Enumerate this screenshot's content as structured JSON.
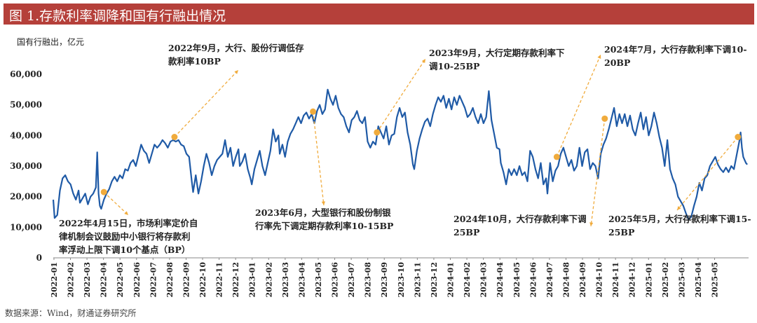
{
  "header": {
    "title": "图 1.存款利率调降和国有行融出情况"
  },
  "source": "数据来源：Wind，财通证券研究所",
  "colors": {
    "header_bg": "#b5403a",
    "line": "#1f5aa6",
    "marker": "#f0ab3c",
    "annotation": "#f0ab3c"
  },
  "chart_data": {
    "type": "line",
    "unit_label": "国有行融出，亿元",
    "ylim": [
      0,
      60000
    ],
    "yticks": [
      "0",
      "10,000",
      "20,000",
      "30,000",
      "40,000",
      "50,000",
      "60,000"
    ],
    "ytick_values": [
      0,
      10000,
      20000,
      30000,
      40000,
      50000,
      60000
    ],
    "grid": false,
    "categories": [
      "2022-01",
      "2022-02",
      "2022-03",
      "2022-04",
      "2022-05",
      "2022-06",
      "2022-07",
      "2022-08",
      "2022-09",
      "2022-10",
      "2022-11",
      "2022-12",
      "2023-01",
      "2023-02",
      "2023-03",
      "2023-04",
      "2023-05",
      "2023-06",
      "2023-07",
      "2023-08",
      "2023-09",
      "2023-10",
      "2023-11",
      "2023-12",
      "2024-01",
      "2024-02",
      "2024-03",
      "2024-04",
      "2024-05",
      "2024-06",
      "2024-07",
      "2024-08",
      "2024-09",
      "2024-10",
      "2024-11",
      "2024-12",
      "2025-01",
      "2025-02",
      "2025-03",
      "2025-04",
      "2025-05"
    ],
    "series": [
      {
        "values": [
          [
            0.0,
            19000
          ],
          [
            0.1,
            13000
          ],
          [
            0.3,
            14000
          ],
          [
            0.5,
            22000
          ],
          [
            0.7,
            26000
          ],
          [
            0.9,
            27000
          ],
          [
            1.1,
            25000
          ],
          [
            1.3,
            24000
          ],
          [
            1.5,
            21000
          ],
          [
            1.7,
            19000
          ],
          [
            1.9,
            22000
          ],
          [
            2.0,
            18000
          ],
          [
            2.2,
            19500
          ],
          [
            2.4,
            21000
          ],
          [
            2.6,
            17500
          ],
          [
            2.8,
            20000
          ],
          [
            3.0,
            21000
          ],
          [
            3.2,
            23000
          ],
          [
            3.3,
            34500
          ],
          [
            3.4,
            21000
          ],
          [
            3.5,
            17000
          ],
          [
            3.6,
            16000
          ],
          [
            3.8,
            19000
          ],
          [
            4.0,
            21000
          ],
          [
            4.2,
            22500
          ],
          [
            4.4,
            25000
          ],
          [
            4.6,
            26500
          ],
          [
            4.8,
            25000
          ],
          [
            5.0,
            27000
          ],
          [
            5.2,
            26000
          ],
          [
            5.4,
            29000
          ],
          [
            5.6,
            28500
          ],
          [
            5.8,
            31000
          ],
          [
            6.0,
            32000
          ],
          [
            6.2,
            30000
          ],
          [
            6.4,
            33500
          ],
          [
            6.6,
            37000
          ],
          [
            6.8,
            35000
          ],
          [
            7.0,
            34000
          ],
          [
            7.2,
            31000
          ],
          [
            7.4,
            34000
          ],
          [
            7.6,
            37000
          ],
          [
            7.8,
            36000
          ],
          [
            8.0,
            37000
          ],
          [
            8.2,
            38500
          ],
          [
            8.4,
            37500
          ],
          [
            8.6,
            36000
          ],
          [
            8.8,
            38000
          ],
          [
            9.0,
            38500
          ],
          [
            9.2,
            38000
          ],
          [
            9.4,
            38500
          ],
          [
            9.6,
            37000
          ],
          [
            9.8,
            36500
          ],
          [
            10.0,
            34000
          ],
          [
            10.2,
            33000
          ],
          [
            10.4,
            25000
          ],
          [
            10.5,
            21500
          ],
          [
            10.7,
            27000
          ],
          [
            10.9,
            21000
          ],
          [
            11.1,
            25000
          ],
          [
            11.3,
            30000
          ],
          [
            11.5,
            34000
          ],
          [
            11.7,
            31000
          ],
          [
            11.9,
            27000
          ],
          [
            12.1,
            30000
          ],
          [
            12.3,
            32000
          ],
          [
            12.5,
            33000
          ],
          [
            12.7,
            34000
          ],
          [
            12.9,
            38500
          ],
          [
            13.1,
            33000
          ],
          [
            13.3,
            36000
          ],
          [
            13.5,
            30000
          ],
          [
            13.7,
            33000
          ],
          [
            13.9,
            35500
          ],
          [
            14.0,
            30000
          ],
          [
            14.2,
            31500
          ],
          [
            14.4,
            34000
          ],
          [
            14.6,
            29000
          ],
          [
            14.8,
            26000
          ],
          [
            14.9,
            24000
          ],
          [
            15.1,
            29000
          ],
          [
            15.3,
            32000
          ],
          [
            15.5,
            35000
          ],
          [
            15.7,
            30000
          ],
          [
            15.9,
            27000
          ],
          [
            16.1,
            31000
          ],
          [
            16.3,
            35000
          ],
          [
            16.5,
            42000
          ],
          [
            16.7,
            38000
          ],
          [
            16.9,
            40000
          ],
          [
            17.0,
            34000
          ],
          [
            17.2,
            37000
          ],
          [
            17.4,
            33000
          ],
          [
            17.6,
            38000
          ],
          [
            17.8,
            40500
          ],
          [
            18.0,
            42000
          ],
          [
            18.2,
            44000
          ],
          [
            18.4,
            46000
          ],
          [
            18.6,
            44000
          ],
          [
            18.8,
            46500
          ],
          [
            19.0,
            47500
          ],
          [
            19.2,
            45500
          ],
          [
            19.4,
            47000
          ],
          [
            19.6,
            44000
          ],
          [
            19.8,
            48000
          ],
          [
            20.0,
            50000
          ],
          [
            20.2,
            47000
          ],
          [
            20.4,
            48500
          ],
          [
            20.6,
            55000
          ],
          [
            20.8,
            52000
          ],
          [
            21.0,
            50000
          ],
          [
            21.2,
            53000
          ],
          [
            21.4,
            49000
          ],
          [
            21.6,
            47000
          ],
          [
            21.8,
            46000
          ],
          [
            22.0,
            43000
          ],
          [
            22.2,
            41000
          ],
          [
            22.4,
            45000
          ],
          [
            22.6,
            46000
          ],
          [
            22.8,
            48000
          ],
          [
            23.0,
            45000
          ],
          [
            23.2,
            44000
          ],
          [
            23.4,
            46000
          ],
          [
            23.6,
            38000
          ],
          [
            23.8,
            36000
          ],
          [
            24.0,
            38000
          ],
          [
            24.2,
            37000
          ],
          [
            24.4,
            43000
          ],
          [
            24.6,
            41000
          ],
          [
            24.8,
            39000
          ],
          [
            25.0,
            43000
          ],
          [
            25.2,
            37000
          ],
          [
            25.4,
            40000
          ],
          [
            25.6,
            40500
          ],
          [
            25.8,
            46000
          ],
          [
            26.0,
            49000
          ],
          [
            26.2,
            46000
          ],
          [
            26.4,
            47500
          ],
          [
            26.6,
            41000
          ],
          [
            26.8,
            37000
          ],
          [
            27.0,
            30500
          ],
          [
            27.1,
            29000
          ],
          [
            27.3,
            35000
          ],
          [
            27.5,
            39000
          ],
          [
            27.7,
            42000
          ],
          [
            27.9,
            44500
          ],
          [
            28.1,
            45500
          ],
          [
            28.3,
            43000
          ],
          [
            28.5,
            47000
          ],
          [
            28.7,
            50000
          ],
          [
            28.9,
            52500
          ],
          [
            29.1,
            51000
          ],
          [
            29.3,
            53000
          ],
          [
            29.5,
            49000
          ],
          [
            29.7,
            52000
          ],
          [
            29.9,
            48500
          ],
          [
            30.1,
            52500
          ],
          [
            30.3,
            50000
          ],
          [
            30.5,
            53000
          ],
          [
            30.7,
            51000
          ],
          [
            30.9,
            49000
          ],
          [
            31.1,
            46000
          ],
          [
            31.3,
            47000
          ],
          [
            31.5,
            49000
          ],
          [
            31.7,
            46000
          ],
          [
            31.9,
            44000
          ],
          [
            32.1,
            47000
          ],
          [
            32.3,
            44000
          ],
          [
            32.5,
            46000
          ],
          [
            32.7,
            54500
          ],
          [
            32.9,
            45000
          ],
          [
            33.1,
            40500
          ],
          [
            33.3,
            36000
          ],
          [
            33.5,
            35500
          ],
          [
            33.6,
            31000
          ],
          [
            33.8,
            28000
          ],
          [
            34.0,
            24000
          ],
          [
            34.2,
            29000
          ],
          [
            34.4,
            27000
          ],
          [
            34.6,
            29000
          ],
          [
            34.8,
            27000
          ],
          [
            35.0,
            30000
          ],
          [
            35.2,
            27000
          ],
          [
            35.4,
            28000
          ],
          [
            35.6,
            25000
          ],
          [
            35.8,
            35000
          ],
          [
            36.0,
            33000
          ],
          [
            36.2,
            29000
          ],
          [
            36.4,
            26000
          ],
          [
            36.6,
            31000
          ],
          [
            36.8,
            24000
          ],
          [
            37.0,
            26000
          ],
          [
            37.1,
            21000
          ],
          [
            37.3,
            31000
          ],
          [
            37.5,
            25000
          ],
          [
            37.7,
            28500
          ],
          [
            37.9,
            30000
          ],
          [
            38.1,
            34000
          ],
          [
            38.3,
            36000
          ],
          [
            38.5,
            33000
          ],
          [
            38.7,
            30000
          ],
          [
            38.9,
            32000
          ],
          [
            39.1,
            28500
          ],
          [
            39.3,
            30000
          ],
          [
            39.5,
            36000
          ],
          [
            39.7,
            30000
          ],
          [
            39.9,
            34500
          ],
          [
            40.1,
            35500
          ],
          [
            40.3,
            29000
          ],
          [
            40.5,
            31000
          ],
          [
            40.7,
            30000
          ],
          [
            40.9,
            26000
          ],
          [
            41.1,
            34000
          ],
          [
            41.3,
            37000
          ],
          [
            41.5,
            39000
          ],
          [
            41.7,
            42000
          ],
          [
            41.9,
            45500
          ],
          [
            42.1,
            49000
          ],
          [
            42.3,
            43000
          ],
          [
            42.5,
            47000
          ],
          [
            42.7,
            44000
          ],
          [
            42.9,
            47000
          ],
          [
            43.1,
            43000
          ],
          [
            43.3,
            46500
          ],
          [
            43.5,
            42000
          ],
          [
            43.7,
            40000
          ],
          [
            43.9,
            44000
          ],
          [
            44.1,
            47500
          ],
          [
            44.3,
            42000
          ],
          [
            44.5,
            46000
          ],
          [
            44.7,
            40000
          ],
          [
            44.9,
            43000
          ],
          [
            45.1,
            47500
          ],
          [
            45.3,
            44000
          ],
          [
            45.5,
            39500
          ],
          [
            45.7,
            36000
          ],
          [
            45.9,
            30000
          ],
          [
            46.1,
            38500
          ],
          [
            46.3,
            29000
          ],
          [
            46.5,
            26000
          ],
          [
            46.7,
            24000
          ],
          [
            46.9,
            20000
          ],
          [
            47.1,
            18500
          ],
          [
            47.3,
            17000
          ],
          [
            47.5,
            14500
          ],
          [
            47.7,
            12500
          ],
          [
            47.9,
            13500
          ],
          [
            48.1,
            17000
          ],
          [
            48.3,
            20000
          ],
          [
            48.5,
            24500
          ],
          [
            48.7,
            22000
          ],
          [
            48.9,
            26000
          ],
          [
            49.1,
            27000
          ],
          [
            49.3,
            30000
          ],
          [
            49.5,
            31500
          ],
          [
            49.7,
            33000
          ],
          [
            49.9,
            30500
          ],
          [
            50.1,
            29000
          ],
          [
            50.3,
            28000
          ],
          [
            50.5,
            29500
          ],
          [
            50.7,
            28000
          ],
          [
            50.9,
            30000
          ],
          [
            51.1,
            29000
          ],
          [
            51.3,
            33500
          ],
          [
            51.5,
            38000
          ],
          [
            51.6,
            41000
          ],
          [
            51.7,
            36000
          ],
          [
            51.8,
            33000
          ],
          [
            52.0,
            31000
          ],
          [
            52.1,
            30500
          ]
        ]
      }
    ],
    "markers": [
      {
        "x": 3.8,
        "y": 21500
      },
      {
        "x": 9.1,
        "y": 39500
      },
      {
        "x": 19.5,
        "y": 47800
      },
      {
        "x": 24.3,
        "y": 41000
      },
      {
        "x": 37.8,
        "y": 33000
      },
      {
        "x": 41.4,
        "y": 45500
      },
      {
        "x": 51.4,
        "y": 39500
      }
    ],
    "annotations": [
      {
        "lines": [
          "2022年4月15日，市场利率定价自",
          "律机制会议鼓励中小银行将存款利",
          "率浮动上限下调10个基点（BP）"
        ]
      },
      {
        "lines": [
          "2022年9月，大行、股份行调低存",
          "款利率10BP"
        ]
      },
      {
        "lines": [
          "2023年6月，大型银行和股份制银",
          "行率先下调定期存款利率10-15BP"
        ]
      },
      {
        "lines": [
          "2023年9月，大行定期存款利率下",
          "调10-25BP"
        ]
      },
      {
        "lines": [
          "2024年7月，大行存款利率下调10-",
          "20BP"
        ]
      },
      {
        "lines": [
          "2024年10月，大行存款利率下调",
          "25BP"
        ]
      },
      {
        "lines": [
          "2025年5月，大行存款利率下调15-",
          "25BP"
        ]
      }
    ]
  }
}
